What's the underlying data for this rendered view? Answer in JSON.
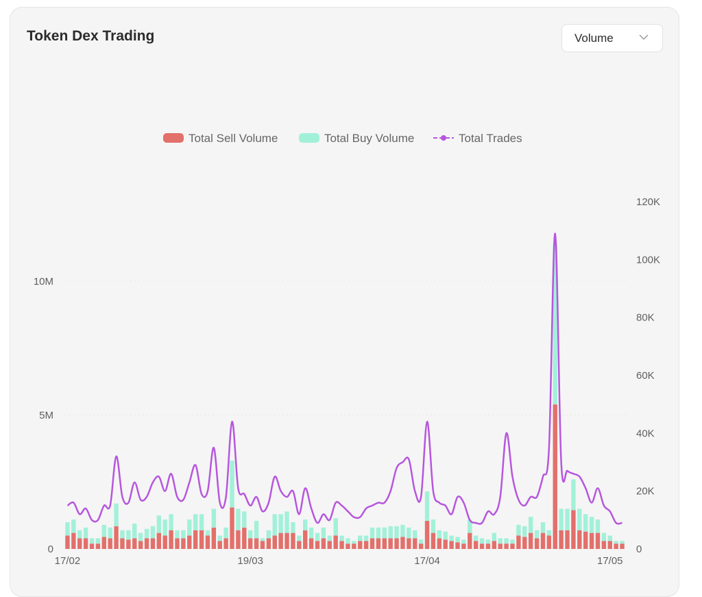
{
  "panel": {
    "title": "Token Dex Trading",
    "dropdown_value": "Volume"
  },
  "chart_data": {
    "type": "bar",
    "stacked": true,
    "legend": [
      "Total Sell Volume",
      "Total Buy Volume",
      "Total Trades"
    ],
    "legend_position": "top-center",
    "x_ticks": [
      "17/02",
      "19/03",
      "17/04",
      "17/05"
    ],
    "x_tick_indices": [
      0,
      30,
      59,
      89
    ],
    "y_left": {
      "ticks": [
        "0",
        "5M",
        "10M"
      ],
      "tick_values": [
        0,
        5000000,
        10000000
      ],
      "ylim": [
        0,
        12500000
      ]
    },
    "y_right": {
      "ticks": [
        "0",
        "20K",
        "40K",
        "60K",
        "80K",
        "100K",
        "120K"
      ],
      "tick_values": [
        0,
        20000,
        40000,
        60000,
        80000,
        100000,
        120000
      ],
      "ylim": [
        0,
        120000
      ]
    },
    "grid": "horizontal",
    "colors": {
      "sell": "#e2706b",
      "buy": "#a3f0d9",
      "trades": "#b656dd"
    },
    "series": [
      {
        "name": "Total Sell Volume",
        "type": "bar",
        "axis": "left",
        "values": [
          500000,
          600000,
          400000,
          400000,
          200000,
          200000,
          450000,
          400000,
          850000,
          400000,
          350000,
          400000,
          300000,
          400000,
          400000,
          600000,
          500000,
          700000,
          400000,
          400000,
          500000,
          700000,
          700000,
          500000,
          800000,
          300000,
          400000,
          1550000,
          700000,
          800000,
          400000,
          400000,
          300000,
          400000,
          500000,
          600000,
          600000,
          600000,
          300000,
          700000,
          400000,
          300000,
          400000,
          300000,
          500000,
          300000,
          200000,
          200000,
          300000,
          300000,
          400000,
          400000,
          400000,
          400000,
          400000,
          450000,
          400000,
          400000,
          200000,
          1050000,
          600000,
          400000,
          350000,
          300000,
          250000,
          200000,
          600000,
          300000,
          200000,
          200000,
          300000,
          200000,
          200000,
          200000,
          500000,
          450000,
          600000,
          400000,
          600000,
          500000,
          5400000,
          700000,
          700000,
          1450000,
          700000,
          650000,
          600000,
          600000,
          300000,
          300000,
          200000,
          200000
        ]
      },
      {
        "name": "Total Buy Volume",
        "type": "bar",
        "axis": "left",
        "values": [
          500000,
          500000,
          300000,
          400000,
          200000,
          200000,
          450000,
          400000,
          850000,
          300000,
          350000,
          550000,
          300000,
          350000,
          450000,
          650000,
          600000,
          600000,
          300000,
          300000,
          600000,
          600000,
          600000,
          200000,
          700000,
          200000,
          400000,
          1750000,
          800000,
          600000,
          300000,
          650000,
          100000,
          300000,
          800000,
          700000,
          800000,
          400000,
          200000,
          400000,
          400000,
          300000,
          400000,
          200000,
          650000,
          200000,
          200000,
          100000,
          200000,
          200000,
          400000,
          400000,
          400000,
          450000,
          450000,
          450000,
          400000,
          300000,
          150000,
          1100000,
          500000,
          300000,
          300000,
          200000,
          200000,
          150000,
          500000,
          200000,
          200000,
          150000,
          300000,
          200000,
          200000,
          150000,
          400000,
          400000,
          600000,
          300000,
          400000,
          200000,
          6000000,
          800000,
          800000,
          1150000,
          800000,
          650000,
          600000,
          500000,
          300000,
          200000,
          100000,
          100000
        ]
      },
      {
        "name": "Total Trades",
        "type": "line",
        "axis": "right",
        "values": [
          15000,
          16000,
          12000,
          14000,
          10000,
          10000,
          15000,
          15000,
          32000,
          18000,
          16000,
          23000,
          17000,
          18000,
          23000,
          25000,
          20000,
          26000,
          18000,
          17000,
          23000,
          29000,
          19000,
          20000,
          35000,
          16000,
          18000,
          44000,
          21000,
          19000,
          15000,
          18000,
          13000,
          16000,
          25000,
          20000,
          18000,
          20000,
          12000,
          21000,
          14000,
          9000,
          12000,
          10000,
          16000,
          15000,
          13000,
          11000,
          11000,
          14000,
          15000,
          16000,
          16000,
          20000,
          28000,
          30000,
          31000,
          20000,
          18000,
          44000,
          20000,
          16000,
          15000,
          12000,
          18000,
          16000,
          10000,
          9000,
          9000,
          13000,
          12000,
          18000,
          40000,
          25000,
          17000,
          15000,
          18000,
          18000,
          25000,
          35000,
          109000,
          30000,
          27000,
          26000,
          25000,
          21000,
          16000,
          21000,
          15000,
          13000,
          9000,
          9000
        ]
      }
    ]
  }
}
